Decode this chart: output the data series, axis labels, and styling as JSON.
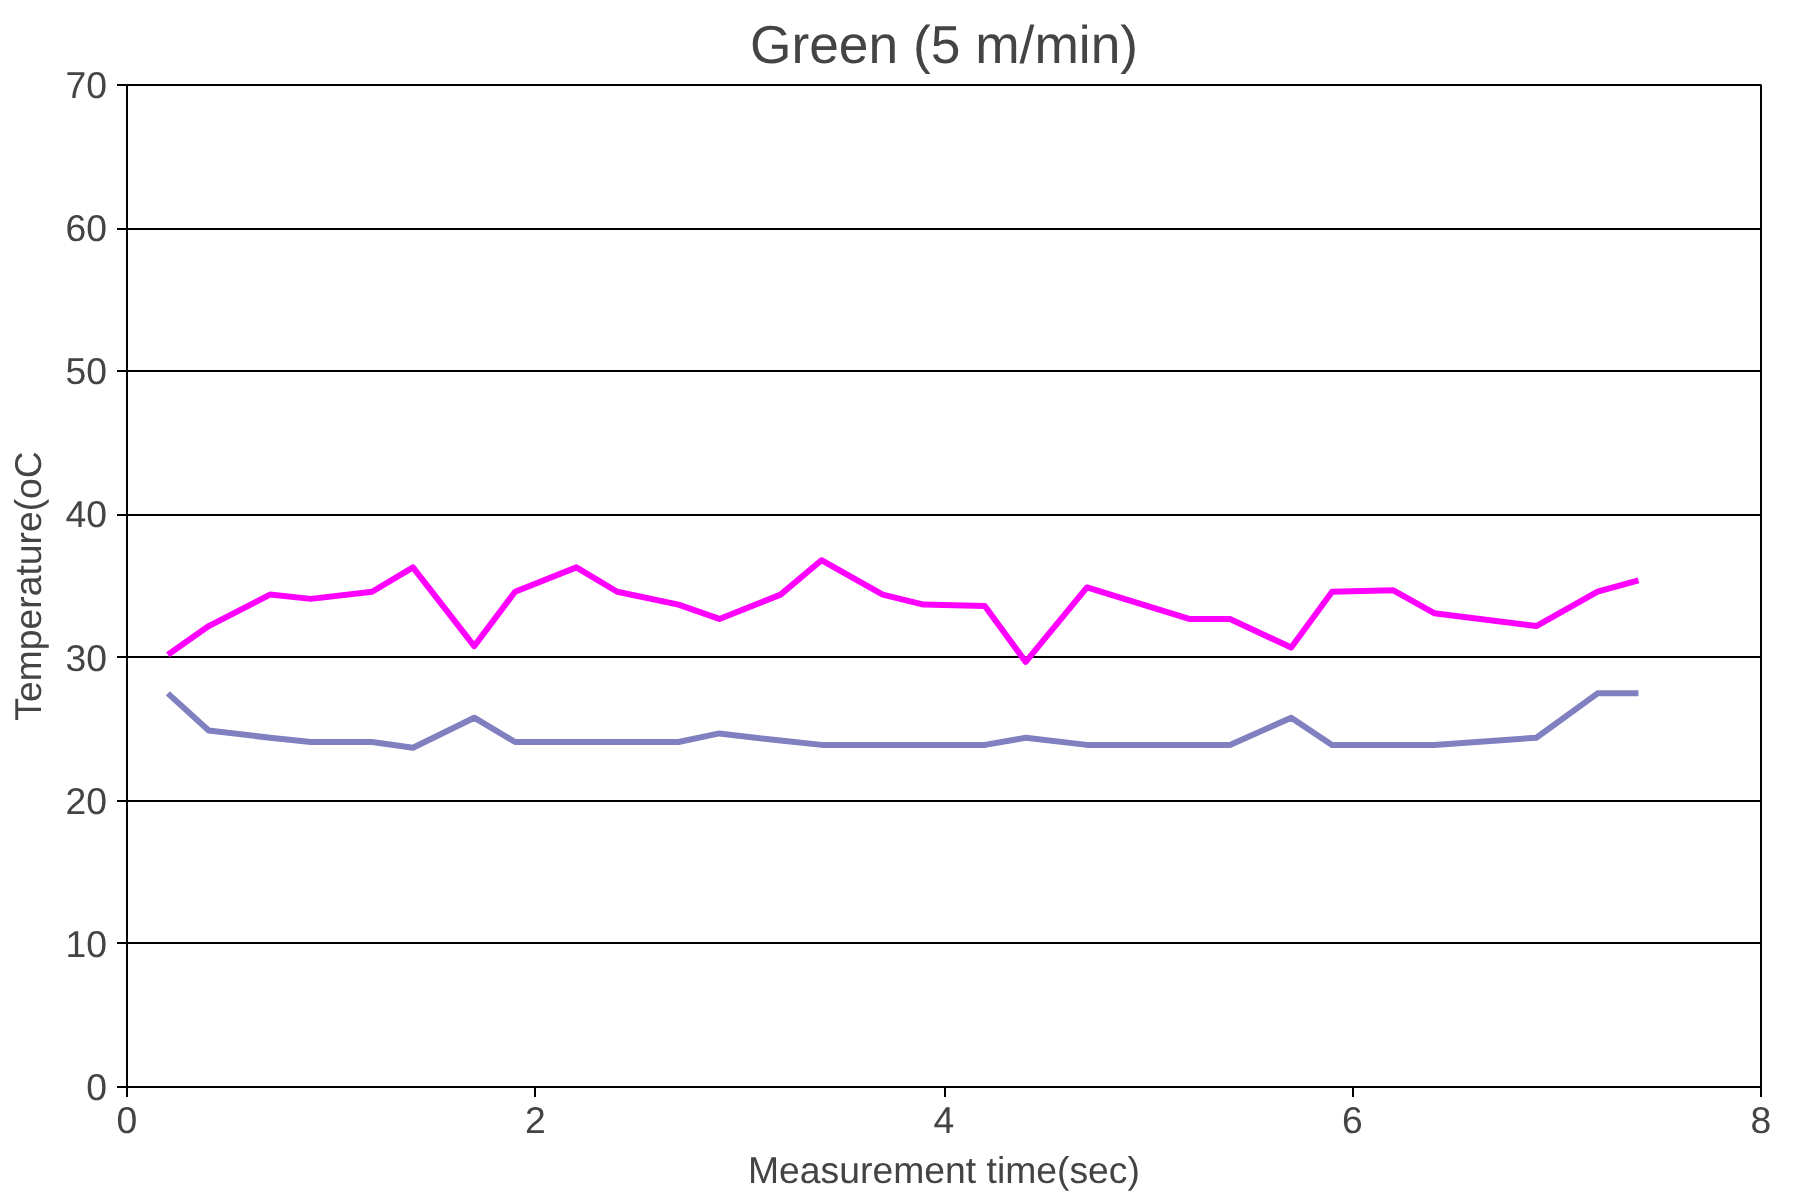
{
  "chart_data": {
    "type": "line",
    "title": "Green (5 m/min)",
    "xlabel": "Measurement time(sec)",
    "ylabel": "Temperature(oC",
    "x": [
      0.2,
      0.4,
      0.7,
      0.9,
      1.2,
      1.4,
      1.7,
      1.9,
      2.2,
      2.4,
      2.7,
      2.9,
      3.2,
      3.4,
      3.7,
      3.9,
      4.2,
      4.4,
      4.7,
      5.2,
      5.4,
      5.7,
      5.9,
      6.2,
      6.4,
      6.9,
      7.2,
      7.4
    ],
    "series": [
      {
        "color": "#ff00ff",
        "values": [
          30.2,
          32.2,
          34.4,
          34.1,
          34.6,
          36.3,
          30.8,
          34.6,
          36.3,
          34.6,
          33.7,
          32.7,
          34.4,
          36.8,
          34.4,
          33.7,
          33.6,
          29.7,
          34.9,
          32.7,
          32.7,
          30.7,
          34.6,
          34.7,
          33.1,
          32.2,
          34.6,
          35.4
        ]
      },
      {
        "color": "#8080c0",
        "values": [
          27.5,
          24.9,
          24.4,
          24.1,
          24.1,
          23.7,
          25.8,
          24.1,
          24.1,
          24.1,
          24.1,
          24.7,
          24.2,
          23.9,
          23.9,
          23.9,
          23.9,
          24.4,
          23.9,
          23.9,
          23.9,
          25.8,
          23.9,
          23.9,
          23.9,
          24.4,
          27.5,
          27.5
        ]
      }
    ],
    "xlim": [
      0,
      8
    ],
    "ylim": [
      0,
      70
    ],
    "xticks": [
      0,
      2,
      4,
      6,
      8
    ],
    "yticks": [
      0,
      10,
      20,
      30,
      40,
      50,
      60,
      70
    ],
    "grid": "y",
    "marker": "none",
    "line_style": "solid"
  }
}
